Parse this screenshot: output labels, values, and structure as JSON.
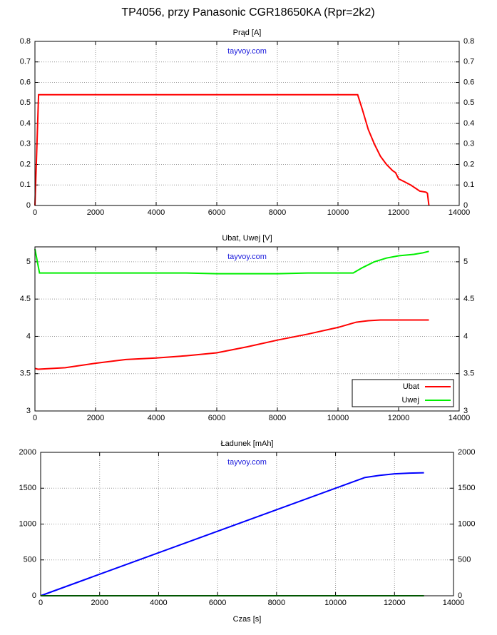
{
  "title": "TP4056, przy Panasonic CGR18650KA (Rpr=2k2)",
  "chart_data": [
    {
      "type": "line",
      "title": "Prąd [A]",
      "annotation": "tayvoy.com",
      "grid": true,
      "xlim": [
        0,
        14000
      ],
      "xticks": [
        0,
        2000,
        4000,
        6000,
        8000,
        10000,
        12000,
        14000
      ],
      "ylim": [
        0,
        0.8
      ],
      "yticks": [
        0,
        0.1,
        0.2,
        0.3,
        0.4,
        0.5,
        0.6,
        0.7,
        0.8
      ],
      "series": [
        {
          "color": "#ff0000",
          "x": [
            0,
            120,
            10650,
            10800,
            11000,
            11200,
            11400,
            11600,
            11800,
            11900,
            12000,
            12200,
            12400,
            12600,
            12700,
            12900,
            12950,
            13000
          ],
          "values": [
            0,
            0.54,
            0.54,
            0.47,
            0.37,
            0.3,
            0.24,
            0.2,
            0.17,
            0.16,
            0.13,
            0.115,
            0.1,
            0.08,
            0.07,
            0.065,
            0.06,
            0
          ]
        }
      ]
    },
    {
      "type": "line",
      "title": "Ubat, Uwej [V]",
      "annotation": "tayvoy.com",
      "grid": true,
      "legend": "lower right",
      "xlim": [
        0,
        14000
      ],
      "xticks": [
        0,
        2000,
        4000,
        6000,
        8000,
        10000,
        12000,
        14000
      ],
      "ylim": [
        3,
        5.2
      ],
      "yticks": [
        3,
        3.5,
        4,
        4.5,
        5
      ],
      "series": [
        {
          "name": "Ubat",
          "color": "#ff0000",
          "x": [
            0,
            100,
            1000,
            2000,
            3000,
            4000,
            5000,
            6000,
            7000,
            8000,
            9000,
            10000,
            10600,
            11000,
            11400,
            13000
          ],
          "values": [
            3.57,
            3.56,
            3.58,
            3.64,
            3.69,
            3.71,
            3.74,
            3.78,
            3.86,
            3.95,
            4.03,
            4.12,
            4.19,
            4.21,
            4.22,
            4.22
          ]
        },
        {
          "name": "Uwej",
          "color": "#00ee00",
          "x": [
            0,
            150,
            1000,
            3000,
            5000,
            6000,
            7000,
            8000,
            9000,
            10000,
            10500,
            10800,
            11200,
            11600,
            12000,
            12500,
            12800,
            13000
          ],
          "values": [
            5.17,
            4.85,
            4.85,
            4.85,
            4.85,
            4.84,
            4.84,
            4.84,
            4.85,
            4.85,
            4.85,
            4.92,
            5.0,
            5.05,
            5.08,
            5.1,
            5.12,
            5.14
          ]
        }
      ]
    },
    {
      "type": "line",
      "title": "Ładunek [mAh]",
      "annotation": "tayvoy.com",
      "grid": true,
      "xlabel": "Czas [s]",
      "xlim": [
        0,
        14000
      ],
      "xticks": [
        0,
        2000,
        4000,
        6000,
        8000,
        10000,
        12000,
        14000
      ],
      "ylim": [
        0,
        2000
      ],
      "yticks": [
        0,
        500,
        1000,
        1500,
        2000
      ],
      "series": [
        {
          "color": "#0000ff",
          "x": [
            0,
            10800,
            11000,
            11500,
            12000,
            12500,
            13000
          ],
          "values": [
            0,
            1620,
            1650,
            1680,
            1700,
            1710,
            1715
          ]
        },
        {
          "color": "#00aa00",
          "x": [
            0,
            13000
          ],
          "values": [
            0,
            0
          ]
        }
      ]
    }
  ]
}
